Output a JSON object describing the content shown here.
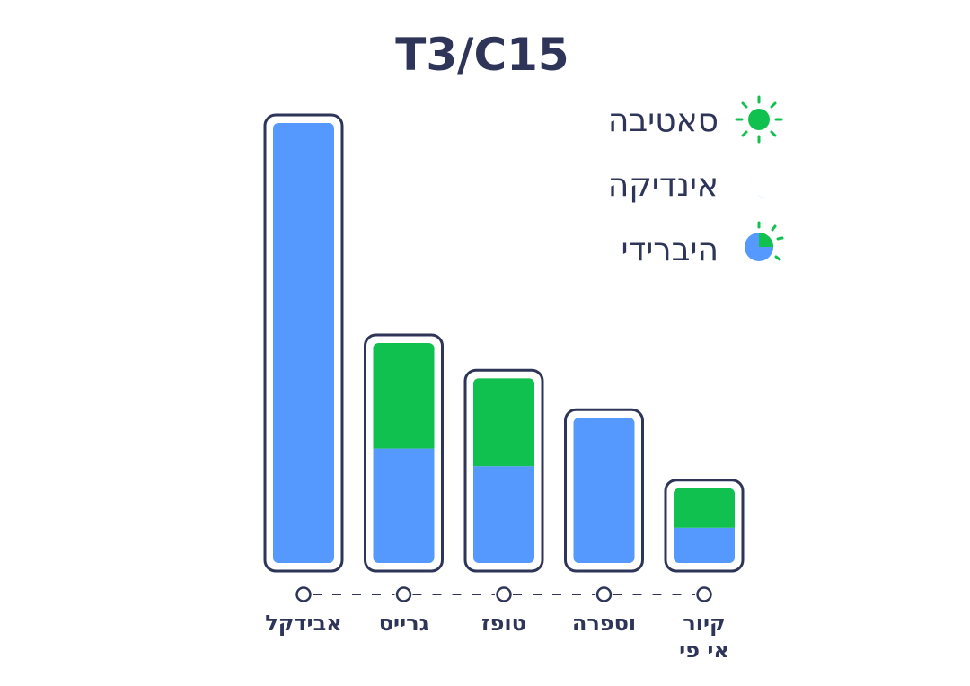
{
  "chart_data": {
    "type": "bar",
    "stacked": true,
    "title": "T3/C15",
    "categories": [
      "אבידקל",
      "גרייס",
      "טופז",
      "וספרה",
      "קיור|אי פי"
    ],
    "series": [
      {
        "name": "אינדיקה",
        "color": "#5599ff",
        "values": [
          100,
          26,
          22,
          33,
          8
        ]
      },
      {
        "name": "סאטיבה",
        "color": "#11c150",
        "values": [
          0,
          24,
          20,
          0,
          9
        ]
      }
    ],
    "ylim": [
      0,
      100
    ],
    "legend": [
      {
        "label": "סאטיבה",
        "icon": "sun-icon",
        "color": "#11c150"
      },
      {
        "label": "אינדיקה",
        "icon": "moon-icon",
        "color": "#5599ff"
      },
      {
        "label": "היברידי",
        "icon": "hybrid-icon",
        "color": "#5599ff"
      }
    ],
    "legend_position": "top-right",
    "grid": false,
    "frame_color": "#2e3558"
  }
}
